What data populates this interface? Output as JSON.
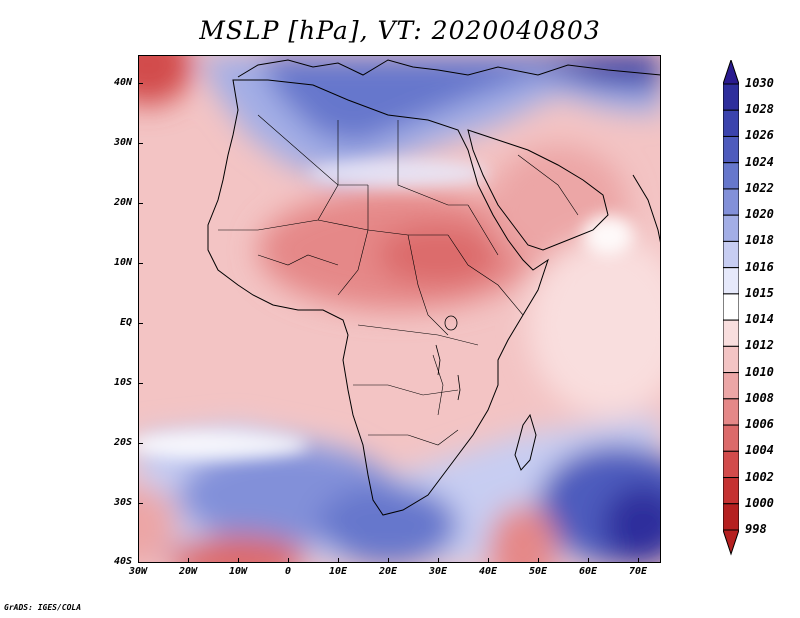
{
  "title": "MSLP [hPa], VT: 2020040803",
  "credit": "GrADS: IGES/COLA",
  "map": {
    "lat_labels": [
      "40N",
      "30N",
      "20N",
      "10N",
      "EQ",
      "10S",
      "20S",
      "30S",
      "40S"
    ],
    "lat_values": [
      40,
      30,
      20,
      10,
      0,
      -10,
      -20,
      -30,
      -40
    ],
    "lon_labels": [
      "30W",
      "20W",
      "10W",
      "0",
      "10E",
      "20E",
      "30E",
      "40E",
      "50E",
      "60E",
      "70E"
    ],
    "lon_values": [
      -30,
      -20,
      -10,
      0,
      10,
      20,
      30,
      40,
      50,
      60,
      70
    ],
    "extent": {
      "lon_min": -30,
      "lon_max": 75,
      "lat_min": -40,
      "lat_max": 45
    }
  },
  "colorbar": {
    "labels": [
      "1030",
      "1028",
      "1026",
      "1024",
      "1022",
      "1020",
      "1018",
      "1016",
      "1015",
      "1014",
      "1012",
      "1010",
      "1008",
      "1006",
      "1004",
      "1002",
      "1000",
      "998"
    ],
    "colors": [
      "#2a1b8f",
      "#2e2e9c",
      "#3b43ad",
      "#4e5bbd",
      "#6677cc",
      "#8290d9",
      "#a3aee6",
      "#c7cdf2",
      "#e6e9fb",
      "#ffffff",
      "#f9dede",
      "#f3c4c4",
      "#eca6a6",
      "#e58888",
      "#dc6a6a",
      "#d24b4b",
      "#c53232",
      "#b52020"
    ]
  }
}
